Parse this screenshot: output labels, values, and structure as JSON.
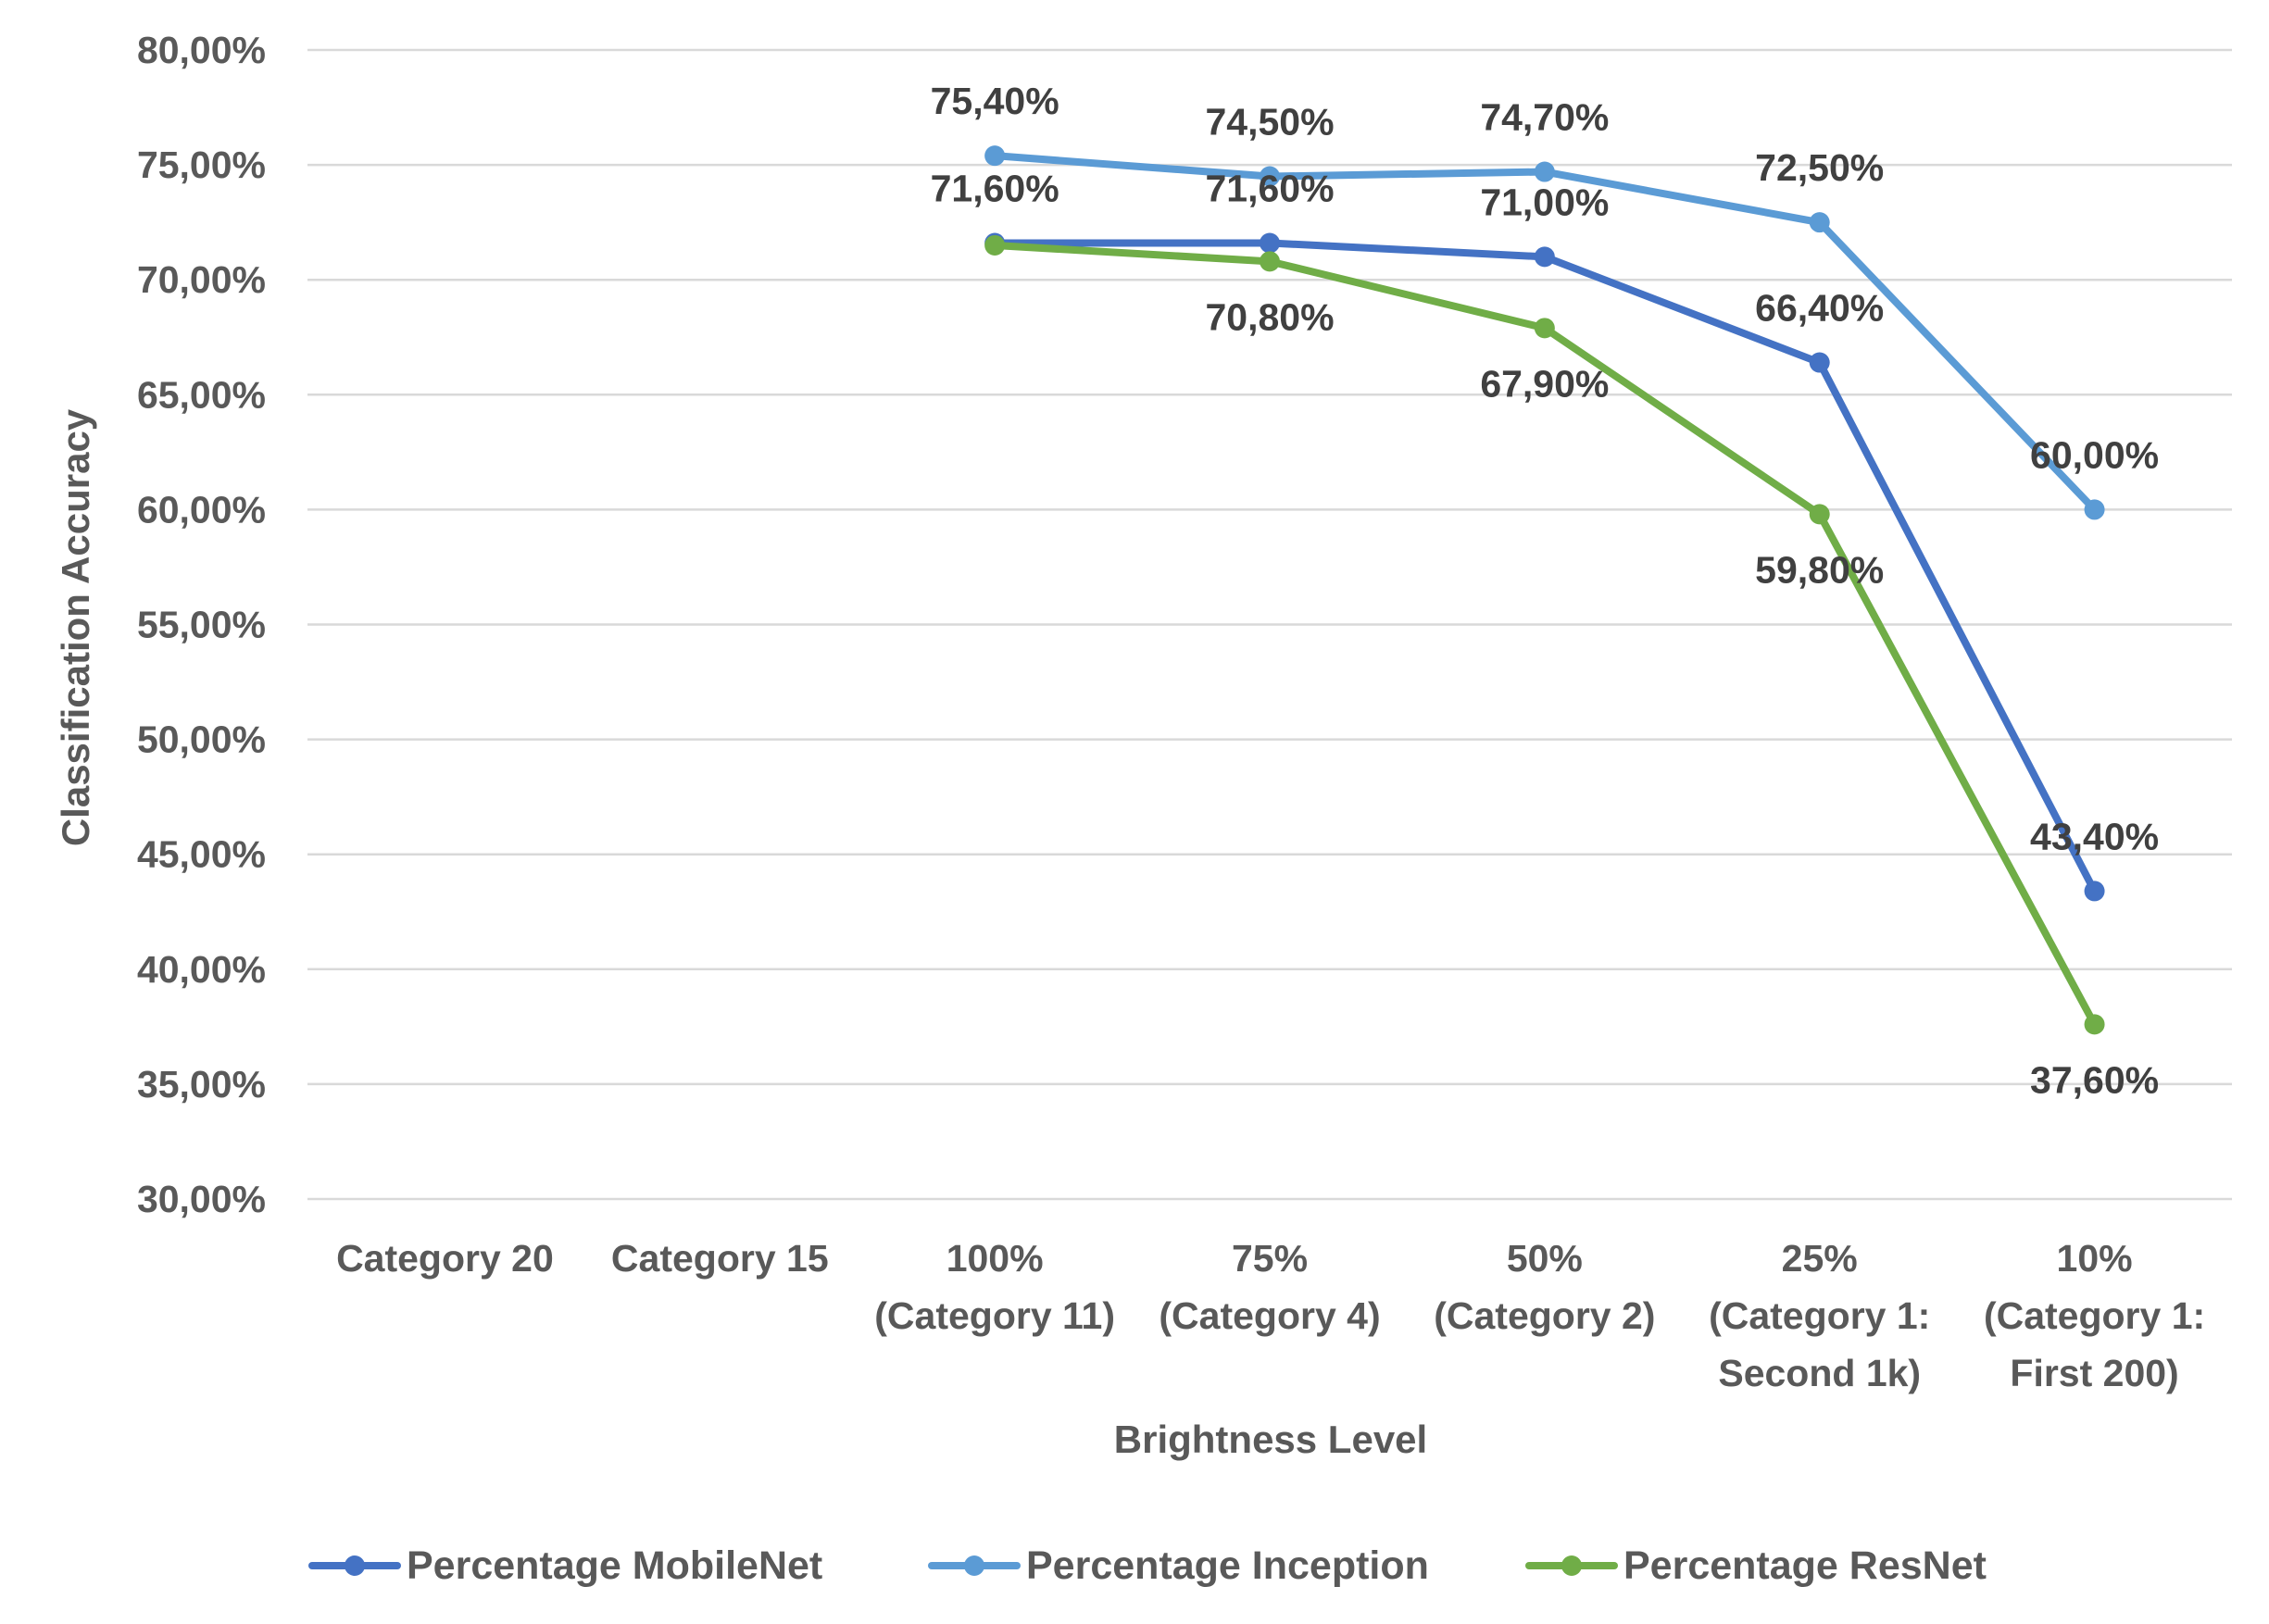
{
  "chart_data": {
    "type": "line",
    "title": "",
    "xlabel": "Brightness Level",
    "ylabel": "Classification Accuracy",
    "ylim": [
      30,
      80
    ],
    "ytick_step": 5,
    "ytick_labels": [
      "30,00%",
      "35,00%",
      "40,00%",
      "45,00%",
      "50,00%",
      "55,00%",
      "60,00%",
      "65,00%",
      "70,00%",
      "75,00%",
      "80,00%"
    ],
    "categories": [
      [
        "Category 20"
      ],
      [
        "Category 15"
      ],
      [
        "100%",
        "(Category 11)"
      ],
      [
        "75%",
        "(Category 4)"
      ],
      [
        "50%",
        "(Category 2)"
      ],
      [
        "25%",
        "(Category 1:",
        "Second 1k)"
      ],
      [
        "10%",
        "(Category 1:",
        "First 200)"
      ]
    ],
    "grid": true,
    "legend_position": "bottom",
    "series": [
      {
        "name": "Percentage MobileNet",
        "color": "#4472c4",
        "values": [
          null,
          null,
          71.6,
          71.6,
          71.0,
          66.4,
          43.4
        ],
        "labels": [
          null,
          null,
          "71,60%",
          "71,60%",
          "71,00%",
          "66,40%",
          "43,40%"
        ],
        "label_pos": [
          null,
          null,
          "above",
          "above",
          "above",
          "above",
          "above"
        ]
      },
      {
        "name": "Percentage Inception",
        "color": "#5b9bd5",
        "values": [
          null,
          null,
          75.4,
          74.5,
          74.7,
          72.5,
          60.0
        ],
        "labels": [
          null,
          null,
          "75,40%",
          "74,50%",
          "74,70%",
          "72,50%",
          "60,00%"
        ],
        "label_pos": [
          null,
          null,
          "above",
          "above",
          "above",
          "above",
          "above"
        ]
      },
      {
        "name": "Percentage ResNet",
        "color": "#70ad47",
        "values": [
          null,
          null,
          71.5,
          70.8,
          67.9,
          59.8,
          37.6
        ],
        "labels": [
          null,
          null,
          null,
          "70,80%",
          "67,90%",
          "59,80%",
          "37,60%"
        ],
        "label_pos": [
          null,
          null,
          null,
          "below",
          "below",
          "below",
          "below"
        ]
      }
    ]
  }
}
